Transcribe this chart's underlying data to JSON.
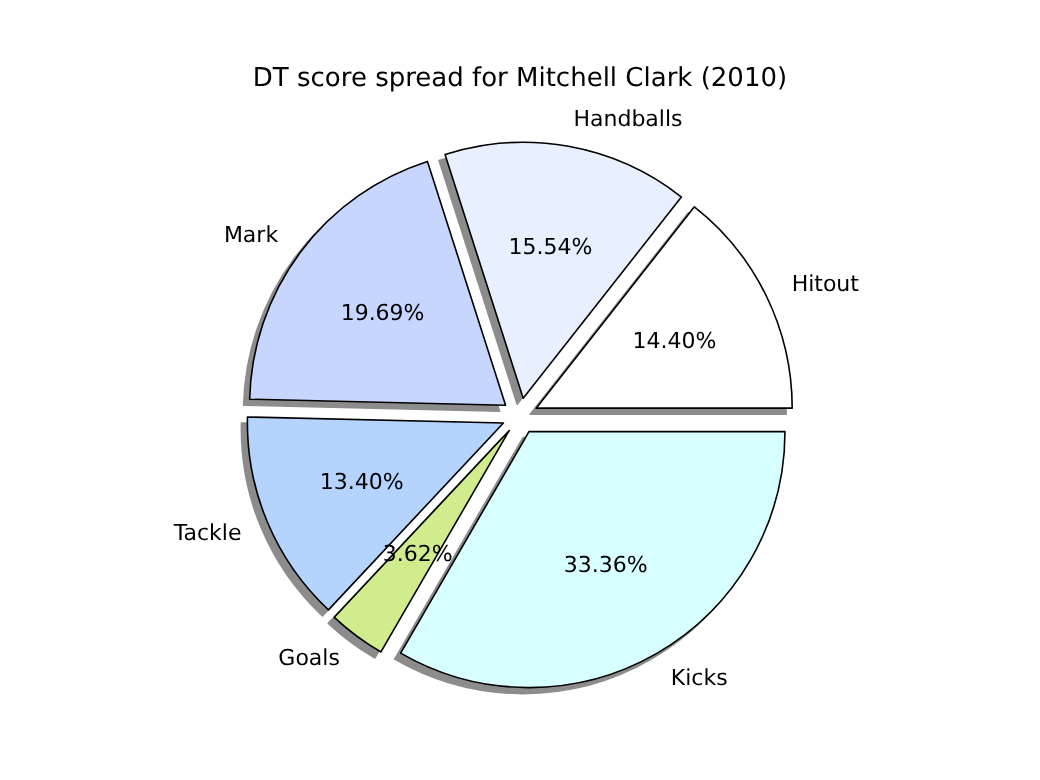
{
  "chart_data": {
    "type": "pie",
    "title": "DT score spread for Mitchell Clark (2010)",
    "categories": [
      "Hitout",
      "Handballs",
      "Mark",
      "Tackle",
      "Goals",
      "Kicks"
    ],
    "values": [
      14.4,
      15.54,
      19.69,
      13.4,
      3.62,
      33.36
    ],
    "value_labels": [
      "14.40%",
      "15.54%",
      "19.69%",
      "13.40%",
      "3.62%",
      "33.36%"
    ],
    "colors": [
      "#ffffff",
      "#e8f0ff",
      "#c6d6ff",
      "#b4d4ff",
      "#d0ec8c",
      "#d8ffff"
    ],
    "legend": false
  }
}
